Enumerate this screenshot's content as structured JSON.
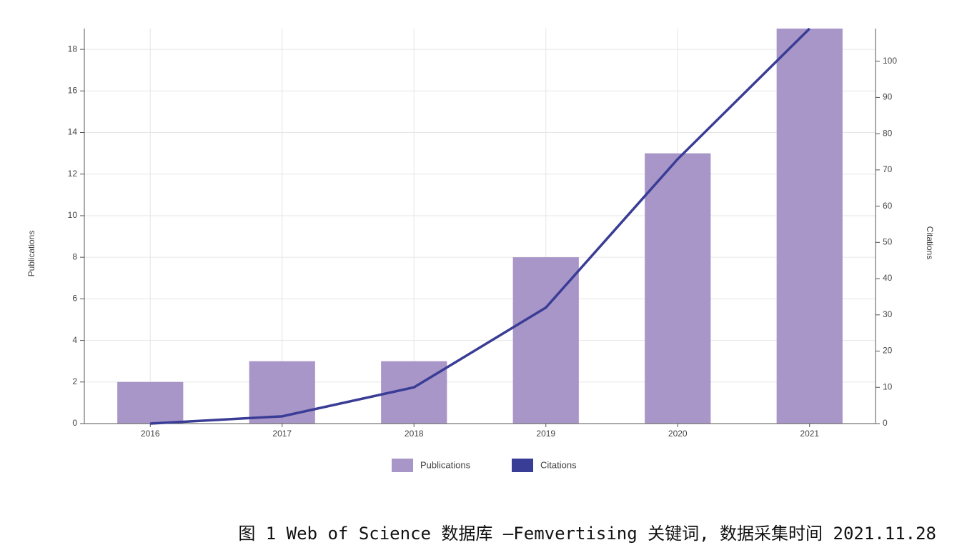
{
  "chart_data": {
    "type": "bar-line",
    "categories": [
      "2016",
      "2017",
      "2018",
      "2019",
      "2020",
      "2021"
    ],
    "series": [
      {
        "name": "Publications",
        "color": "#a996c8",
        "type": "bar",
        "values": [
          2,
          3,
          3,
          8,
          13,
          19
        ]
      },
      {
        "name": "Citations",
        "color": "#3a3d96",
        "type": "line",
        "axis": "y2",
        "values": [
          0,
          2,
          10,
          32,
          73,
          109
        ]
      }
    ],
    "ylabel": "Publications",
    "y2label": "Citations",
    "ylim": [
      0,
      19
    ],
    "yticks": [
      0,
      2,
      4,
      6,
      8,
      10,
      12,
      14,
      16,
      18
    ],
    "y2lim": [
      0,
      109
    ],
    "y2ticks": [
      0,
      10,
      20,
      30,
      40,
      50,
      60,
      70,
      80,
      90,
      100
    ],
    "grid": true,
    "legend": "bottom"
  },
  "caption": "图 1  Web of Science 数据库 —Femvertising 关键词, 数据采集时间 2021.11.28"
}
